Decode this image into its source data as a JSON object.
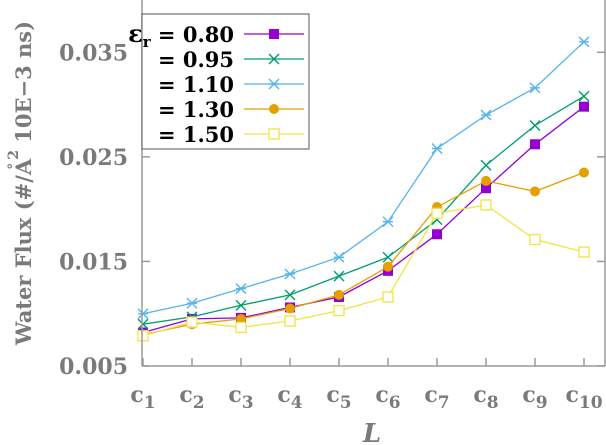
{
  "chart_data": {
    "type": "line",
    "title": "",
    "xlabel": "L",
    "ylabel": "Water Flux (#/Å² 10E−3 ns)",
    "ylabel_parts": {
      "before": "Water Flux (#/",
      "A": "A",
      "ring": "°",
      "exp": "2",
      "after": " 10E−3 ns)"
    },
    "categories": [
      "c1",
      "c2",
      "c3",
      "c4",
      "c5",
      "c6",
      "c7",
      "c8",
      "c9",
      "c10"
    ],
    "category_parts": [
      {
        "base": "c",
        "sub": "1"
      },
      {
        "base": "c",
        "sub": "2"
      },
      {
        "base": "c",
        "sub": "3"
      },
      {
        "base": "c",
        "sub": "4"
      },
      {
        "base": "c",
        "sub": "5"
      },
      {
        "base": "c",
        "sub": "6"
      },
      {
        "base": "c",
        "sub": "7"
      },
      {
        "base": "c",
        "sub": "8"
      },
      {
        "base": "c",
        "sub": "9"
      },
      {
        "base": "c",
        "sub": "10"
      }
    ],
    "ylim": [
      0.005,
      0.04
    ],
    "yticks": [
      0.005,
      0.015,
      0.025,
      0.035
    ],
    "ytick_labels": [
      "0.005",
      "0.015",
      "0.025",
      "0.035"
    ],
    "legend_symbol": "ε",
    "legend_symbol_sub": "r",
    "legend_location": "top-left",
    "series": [
      {
        "name": "0.80",
        "legend_label": "= 0.80",
        "color": "#9400d3",
        "marker": "filled-square",
        "values": [
          0.0082,
          0.0095,
          0.0096,
          0.0106,
          0.0116,
          0.0141,
          0.0176,
          0.022,
          0.0262,
          0.0298
        ]
      },
      {
        "name": "0.95",
        "legend_label": "= 0.95",
        "color": "#009e73",
        "marker": "x",
        "values": [
          0.009,
          0.0097,
          0.0108,
          0.0118,
          0.0136,
          0.0154,
          0.019,
          0.0242,
          0.028,
          0.0308
        ]
      },
      {
        "name": "1.10",
        "legend_label": "= 1.10",
        "color": "#56b4e9",
        "marker": "star",
        "values": [
          0.01,
          0.011,
          0.0124,
          0.0138,
          0.0154,
          0.0188,
          0.0258,
          0.029,
          0.0316,
          0.036
        ]
      },
      {
        "name": "1.30",
        "legend_label": "= 1.30",
        "color": "#e69f00",
        "marker": "filled-circle",
        "values": [
          0.008,
          0.009,
          0.0095,
          0.0105,
          0.0118,
          0.0145,
          0.0202,
          0.0227,
          0.0217,
          0.0235
        ]
      },
      {
        "name": "1.50",
        "legend_label": "= 1.50",
        "color": "#f0e442",
        "marker": "open-square",
        "values": [
          0.0079,
          0.0092,
          0.0087,
          0.0093,
          0.0103,
          0.0116,
          0.0196,
          0.0204,
          0.0171,
          0.0159
        ]
      }
    ]
  }
}
